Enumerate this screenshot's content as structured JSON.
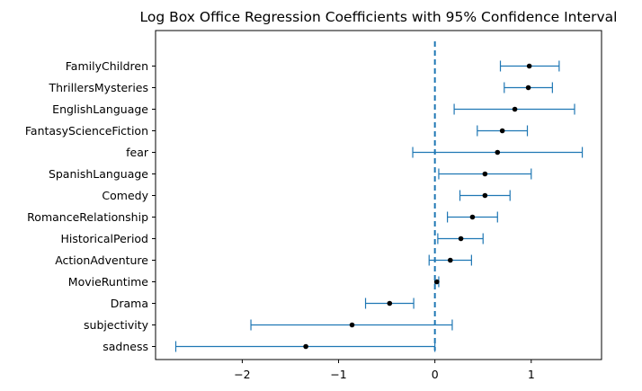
{
  "chart_data": {
    "type": "errorbar",
    "title": "Log Box Office Regression Coefficients with 95% Confidence Interval",
    "xlabel": "",
    "ylabel": "",
    "xlim": [
      -2.9,
      1.73
    ],
    "xticks": [
      -2,
      -1,
      0,
      1
    ],
    "xtick_labels": [
      "−2",
      "−1",
      "0",
      "1"
    ],
    "reference_line": {
      "x": 0,
      "style": "dashed",
      "color": "#1f77b4"
    },
    "grid": false,
    "point_color": "#000000",
    "errorbar_color": "#1f77b4",
    "categories": [
      "FamilyChildren",
      "ThrillersMysteries",
      "EnglishLanguage",
      "FantasyScienceFiction",
      "fear",
      "SpanishLanguage",
      "Comedy",
      "RomanceRelationship",
      "HistoricalPeriod",
      "ActionAdventure",
      "MovieRuntime",
      "Drama",
      "subjectivity",
      "sadness"
    ],
    "coefficients": [
      0.98,
      0.97,
      0.83,
      0.7,
      0.65,
      0.52,
      0.52,
      0.39,
      0.27,
      0.16,
      0.02,
      -0.47,
      -0.86,
      -1.34
    ],
    "ci_lower": [
      0.68,
      0.72,
      0.2,
      0.44,
      -0.23,
      0.04,
      0.26,
      0.13,
      0.03,
      -0.06,
      0.0,
      -0.72,
      -1.91,
      -2.69
    ],
    "ci_upper": [
      1.29,
      1.22,
      1.45,
      0.96,
      1.53,
      1.0,
      0.78,
      0.65,
      0.5,
      0.38,
      0.04,
      -0.22,
      0.18,
      0.0
    ]
  }
}
